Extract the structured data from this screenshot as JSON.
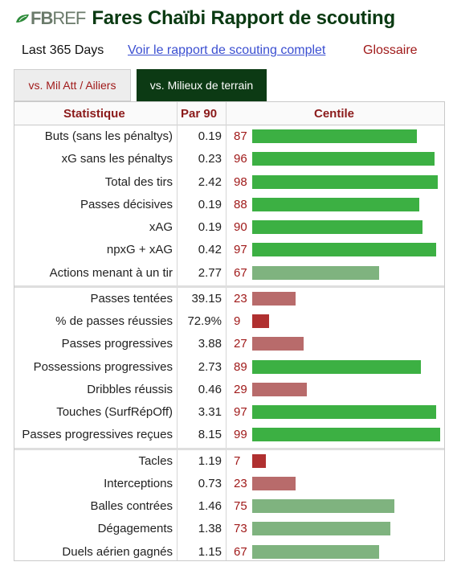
{
  "header": {
    "logo_fb": "FB",
    "logo_ref": "REF",
    "title": "Fares Chaïbi Rapport de scouting"
  },
  "links": {
    "period": "Last 365 Days",
    "full_report": "Voir le rapport de scouting complet",
    "glossary": "Glossaire"
  },
  "tabs": [
    {
      "label": "vs. Mil Att / Ailiers",
      "active": false
    },
    {
      "label": "vs. Milieux de terrain",
      "active": true
    }
  ],
  "table": {
    "columns": [
      "Statistique",
      "Par 90",
      "Centile"
    ],
    "colors": {
      "high": "#3cb043",
      "mid": "#7fb37f",
      "low": "#b86b6b",
      "verylow": "#b03030"
    },
    "groups": [
      [
        {
          "stat": "Buts (sans les pénaltys)",
          "per90": "0.19",
          "percentile": 87
        },
        {
          "stat": "xG sans les pénaltys",
          "per90": "0.23",
          "percentile": 96
        },
        {
          "stat": "Total des tirs",
          "per90": "2.42",
          "percentile": 98
        },
        {
          "stat": "Passes décisives",
          "per90": "0.19",
          "percentile": 88
        },
        {
          "stat": "xAG",
          "per90": "0.19",
          "percentile": 90
        },
        {
          "stat": "npxG + xAG",
          "per90": "0.42",
          "percentile": 97
        },
        {
          "stat": "Actions menant à un tir",
          "per90": "2.77",
          "percentile": 67
        }
      ],
      [
        {
          "stat": "Passes tentées",
          "per90": "39.15",
          "percentile": 23
        },
        {
          "stat": "% de passes réussies",
          "per90": "72.9%",
          "percentile": 9
        },
        {
          "stat": "Passes progressives",
          "per90": "3.88",
          "percentile": 27
        },
        {
          "stat": "Possessions progressives",
          "per90": "2.73",
          "percentile": 89
        },
        {
          "stat": "Dribbles réussis",
          "per90": "0.46",
          "percentile": 29
        },
        {
          "stat": "Touches (SurfRépOff)",
          "per90": "3.31",
          "percentile": 97
        },
        {
          "stat": "Passes progressives reçues",
          "per90": "8.15",
          "percentile": 99
        }
      ],
      [
        {
          "stat": "Tacles",
          "per90": "1.19",
          "percentile": 7
        },
        {
          "stat": "Interceptions",
          "per90": "0.73",
          "percentile": 23
        },
        {
          "stat": "Balles contrées",
          "per90": "1.46",
          "percentile": 75
        },
        {
          "stat": "Dégagements",
          "per90": "1.38",
          "percentile": 73
        },
        {
          "stat": "Duels aérien gagnés",
          "per90": "1.15",
          "percentile": 67
        }
      ]
    ]
  }
}
